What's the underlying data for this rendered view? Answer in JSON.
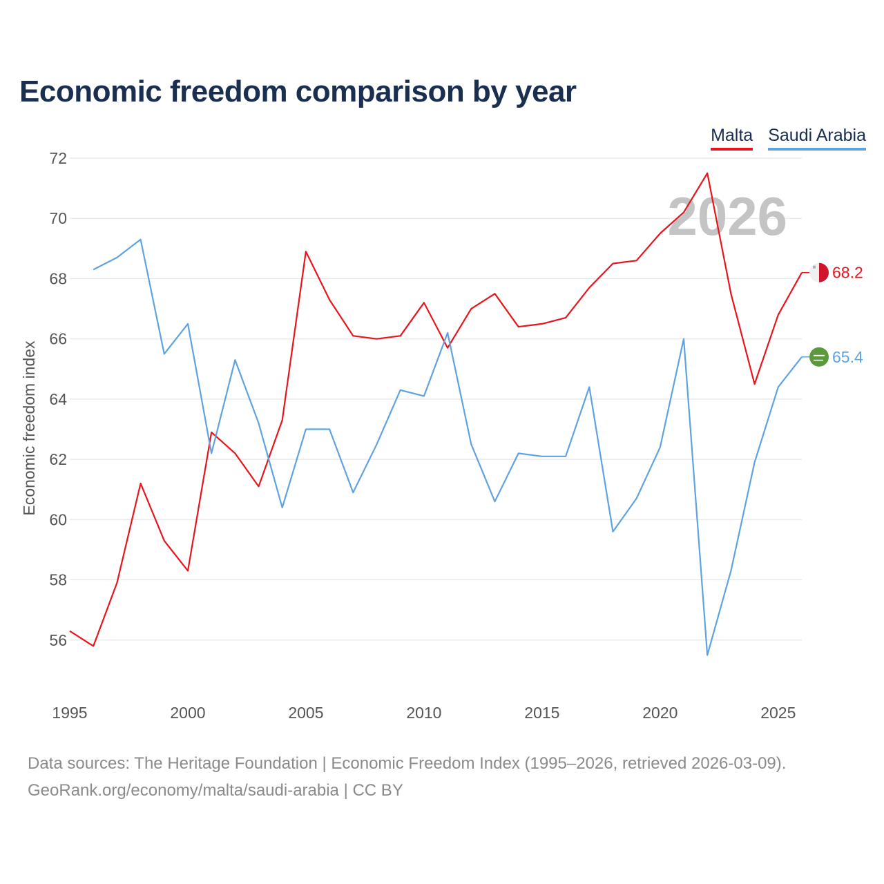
{
  "title": "Economic freedom comparison by year",
  "footer": {
    "line1": "Data sources: The Heritage Foundation | Economic Freedom Index (1995–2026, retrieved 2026-03-09).",
    "line2": "GeoRank.org/economy/malta/saudi-arabia | CC BY"
  },
  "colors": {
    "malta": "#e8141c",
    "saudi": "#5ea3e0",
    "grid": "#e6e6e6",
    "watermark": "#c4c4c4"
  },
  "chart_data": {
    "type": "line",
    "title": "Economic freedom comparison by year",
    "xlabel": "",
    "ylabel": "Economic freedom index",
    "xlim": [
      1995,
      2026
    ],
    "ylim": [
      54,
      72
    ],
    "x_ticks": [
      1995,
      2000,
      2005,
      2010,
      2015,
      2020,
      2025
    ],
    "y_ticks": [
      56,
      58,
      60,
      62,
      64,
      66,
      68,
      70,
      72
    ],
    "watermark_year": "2026",
    "legend": [
      "Malta",
      "Saudi Arabia"
    ],
    "series": [
      {
        "name": "Malta",
        "color": "#e8141c",
        "end_label": "68.2",
        "flag_icon": "malta-flag-icon",
        "x": [
          1995,
          1996,
          1997,
          1998,
          1999,
          2000,
          2001,
          2002,
          2003,
          2004,
          2005,
          2006,
          2007,
          2008,
          2009,
          2010,
          2011,
          2012,
          2013,
          2014,
          2015,
          2016,
          2017,
          2018,
          2019,
          2020,
          2021,
          2022,
          2023,
          2024,
          2025,
          2026
        ],
        "values": [
          56.3,
          55.8,
          57.9,
          61.2,
          59.3,
          58.3,
          62.9,
          62.2,
          61.1,
          63.3,
          68.9,
          67.3,
          66.1,
          66.0,
          66.1,
          67.2,
          65.7,
          67.0,
          67.5,
          66.4,
          66.5,
          66.7,
          67.7,
          68.5,
          68.6,
          69.5,
          70.2,
          71.5,
          67.5,
          64.5,
          66.8,
          68.2
        ]
      },
      {
        "name": "Saudi Arabia",
        "color": "#5ea3e0",
        "end_label": "65.4",
        "flag_icon": "saudi-flag-icon",
        "x": [
          1996,
          1997,
          1998,
          1999,
          2000,
          2001,
          2002,
          2003,
          2004,
          2005,
          2006,
          2007,
          2008,
          2009,
          2010,
          2011,
          2012,
          2013,
          2014,
          2015,
          2016,
          2017,
          2018,
          2019,
          2020,
          2021,
          2022,
          2023,
          2024,
          2025,
          2026
        ],
        "values": [
          68.3,
          68.7,
          69.3,
          65.5,
          66.5,
          62.2,
          65.3,
          63.2,
          60.4,
          63.0,
          63.0,
          60.9,
          62.5,
          64.3,
          64.1,
          66.2,
          62.5,
          60.6,
          62.2,
          62.1,
          62.1,
          64.4,
          59.6,
          60.7,
          62.4,
          66.0,
          55.5,
          58.3,
          61.9,
          64.4,
          65.4
        ]
      }
    ]
  }
}
